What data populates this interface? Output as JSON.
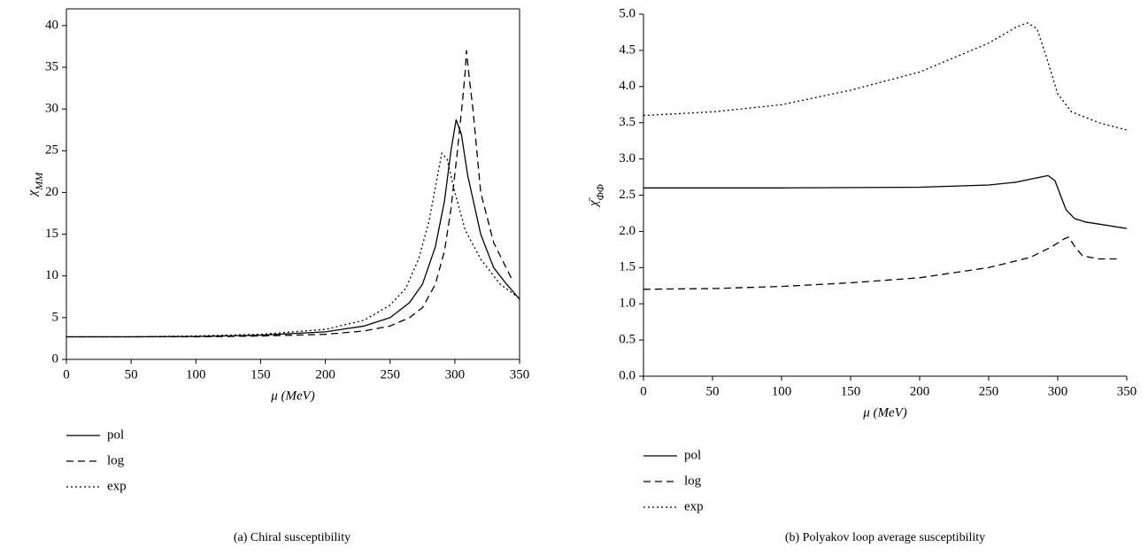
{
  "chart_data": [
    {
      "type": "line",
      "caption": "(a) Chiral susceptibility",
      "x_label": "μ (MeV)",
      "y_label": {
        "text": "χ",
        "sub": "MM"
      },
      "xlim": [
        0,
        350
      ],
      "xticks": [
        0,
        50,
        100,
        150,
        200,
        250,
        300,
        350
      ],
      "ylim": [
        0,
        42
      ],
      "yticks": [
        0,
        5,
        10,
        15,
        20,
        25,
        30,
        35,
        40
      ],
      "series": [
        {
          "name": "pol",
          "color": "#000000",
          "dash": "solid",
          "x": [
            0,
            50,
            100,
            150,
            200,
            230,
            250,
            265,
            275,
            285,
            292,
            297,
            301,
            305,
            310,
            320,
            330,
            340,
            350
          ],
          "values": [
            2.7,
            2.7,
            2.75,
            2.9,
            3.3,
            4.0,
            5.0,
            6.8,
            9.0,
            13.5,
            19.0,
            25.0,
            28.7,
            27.0,
            22.0,
            15.0,
            11.0,
            9.0,
            7.2
          ]
        },
        {
          "name": "log",
          "color": "#000000",
          "dash": "dashed",
          "x": [
            0,
            50,
            100,
            150,
            200,
            230,
            250,
            265,
            275,
            285,
            292,
            297,
            302,
            306,
            308,
            309,
            311,
            314,
            320,
            330,
            345
          ],
          "values": [
            2.7,
            2.7,
            2.7,
            2.8,
            3.0,
            3.4,
            4.0,
            5.0,
            6.2,
            9.0,
            13.0,
            18.0,
            25.0,
            31.0,
            34.5,
            37.0,
            34.0,
            30.0,
            20.0,
            14.0,
            9.3
          ]
        },
        {
          "name": "exp",
          "color": "#000000",
          "dash": "dotted",
          "x": [
            0,
            50,
            100,
            150,
            200,
            230,
            250,
            262,
            272,
            280,
            286,
            290,
            294,
            300,
            308,
            320,
            335,
            350
          ],
          "values": [
            2.7,
            2.7,
            2.8,
            3.0,
            3.6,
            4.7,
            6.5,
            8.5,
            12.0,
            16.5,
            21.5,
            24.7,
            24.0,
            20.0,
            15.5,
            12.0,
            9.0,
            7.3
          ]
        }
      ]
    },
    {
      "type": "line",
      "caption": "(b) Polyakov loop average susceptibility",
      "x_label": "μ (MeV)",
      "y_label": {
        "text": "χ̄",
        "sub": "ΦΦ"
      },
      "xlim": [
        0,
        350
      ],
      "xticks": [
        0,
        50,
        100,
        150,
        200,
        250,
        300,
        350
      ],
      "ylim": [
        0,
        5
      ],
      "yticks": [
        {
          "value": 0,
          "label": "0.0"
        },
        0.5,
        {
          "value": 1,
          "label": "1.0"
        },
        1.5,
        {
          "value": 2,
          "label": "2.0"
        },
        2.5,
        {
          "value": 3,
          "label": "3.0"
        },
        3.5,
        {
          "value": 4,
          "label": "4.0"
        },
        4.5,
        {
          "value": 5,
          "label": "5.0"
        }
      ],
      "series": [
        {
          "name": "pol",
          "color": "#000000",
          "dash": "solid",
          "x": [
            0,
            100,
            200,
            250,
            270,
            285,
            293,
            298,
            302,
            306,
            312,
            320,
            330,
            350
          ],
          "values": [
            2.6,
            2.6,
            2.61,
            2.64,
            2.68,
            2.74,
            2.77,
            2.7,
            2.5,
            2.3,
            2.18,
            2.13,
            2.1,
            2.04
          ]
        },
        {
          "name": "log",
          "color": "#000000",
          "dash": "dashed",
          "x": [
            0,
            50,
            100,
            150,
            200,
            250,
            280,
            295,
            305,
            308,
            312,
            318,
            330,
            345
          ],
          "values": [
            1.2,
            1.21,
            1.24,
            1.29,
            1.36,
            1.5,
            1.64,
            1.78,
            1.9,
            1.92,
            1.8,
            1.66,
            1.62,
            1.62
          ]
        },
        {
          "name": "exp",
          "color": "#000000",
          "dash": "dotted",
          "x": [
            0,
            50,
            100,
            150,
            200,
            250,
            270,
            278,
            285,
            292,
            300,
            310,
            330,
            350
          ],
          "values": [
            3.6,
            3.65,
            3.75,
            3.95,
            4.2,
            4.6,
            4.82,
            4.88,
            4.8,
            4.4,
            3.9,
            3.65,
            3.5,
            3.4
          ]
        }
      ]
    }
  ]
}
